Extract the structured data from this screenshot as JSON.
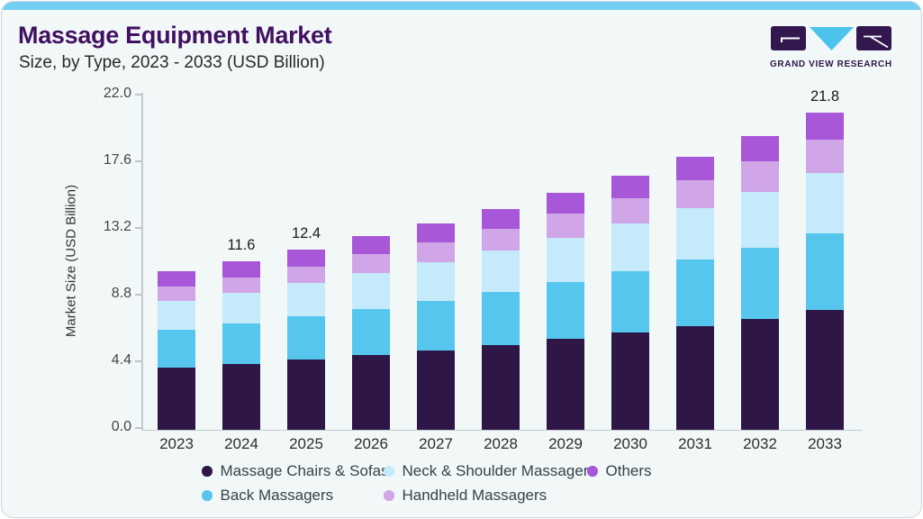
{
  "header": {
    "title": "Massage Equipment Market",
    "subtitle": "Size, by Type, 2023 - 2033 (USD Billion)",
    "logo_text": "GRAND VIEW RESEARCH"
  },
  "colors": {
    "accent_strip": "#72cef2",
    "title_text": "#421162",
    "card_background": "#f1f8f7",
    "axis_line": "#c2cbd0"
  },
  "chart_data": {
    "type": "bar",
    "stacked": true,
    "title": "Massage Equipment Market Size, by Type, 2023 - 2033 (USD Billion)",
    "ylabel": "Market Size (USD Billion)",
    "xlabel": "",
    "ylim": [
      0,
      22
    ],
    "grid": false,
    "legend_position": "bottom",
    "categories": [
      "2023",
      "2024",
      "2025",
      "2026",
      "2027",
      "2028",
      "2029",
      "2030",
      "2031",
      "2032",
      "2033"
    ],
    "y_tick_labels": [
      "0.0",
      "4.4",
      "8.8",
      "13.2",
      "17.6",
      "22.0"
    ],
    "series": [
      {
        "name": "Massage Chairs & Sofas",
        "color": "#2e1647",
        "values": [
          4.27,
          4.52,
          4.82,
          5.14,
          5.47,
          5.83,
          6.24,
          6.67,
          7.14,
          7.65,
          8.21
        ]
      },
      {
        "name": "Back Massagers",
        "color": "#56c6ee",
        "values": [
          2.6,
          2.78,
          2.97,
          3.19,
          3.41,
          3.66,
          3.93,
          4.22,
          4.54,
          4.88,
          5.28
        ]
      },
      {
        "name": "Neck & Shoulder Massagers",
        "color": "#c5eafb",
        "values": [
          1.98,
          2.12,
          2.28,
          2.46,
          2.64,
          2.84,
          3.05,
          3.3,
          3.56,
          3.84,
          4.16
        ]
      },
      {
        "name": "Handheld Massagers",
        "color": "#d0a6e8",
        "values": [
          0.99,
          1.07,
          1.16,
          1.27,
          1.37,
          1.49,
          1.62,
          1.76,
          1.92,
          2.09,
          2.3
        ]
      },
      {
        "name": "Others",
        "color": "#a757d7",
        "values": [
          1.06,
          1.11,
          1.17,
          1.24,
          1.31,
          1.38,
          1.46,
          1.55,
          1.64,
          1.74,
          1.85
        ]
      }
    ],
    "estimated_totals": [
      10.9,
      11.6,
      12.4,
      13.3,
      14.2,
      15.2,
      16.3,
      17.5,
      18.8,
      20.2,
      21.8
    ],
    "bar_total_labels": {
      "2024": "11.6",
      "2025": "12.4",
      "2033": "21.8"
    }
  }
}
